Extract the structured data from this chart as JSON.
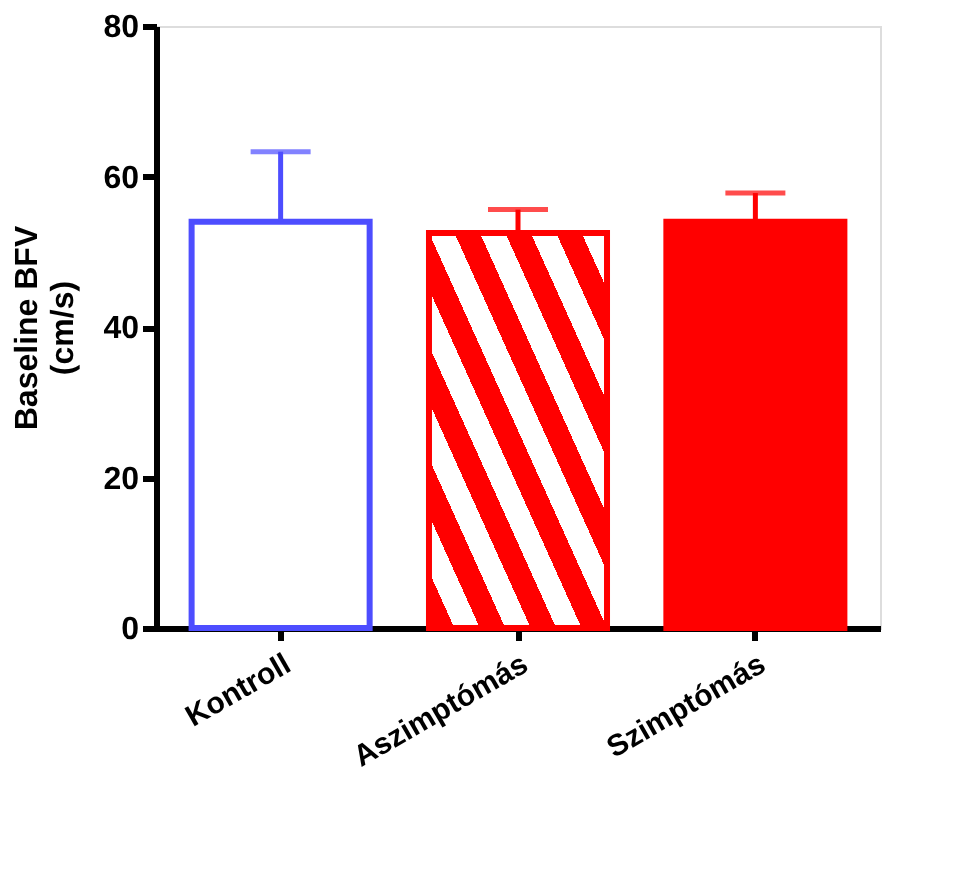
{
  "chart_data": {
    "type": "bar",
    "ylabel": "Baseline BFV\n(cm/s)",
    "categories": [
      "Kontroll",
      "Aszimptómás",
      "Szimptómás"
    ],
    "values": [
      54,
      52.5,
      54
    ],
    "colors": [
      "#4d4dff",
      "#ff0000",
      "#ff0000"
    ],
    "errors": [
      [
        54,
        63.3
      ],
      [
        52.5,
        55.6
      ],
      [
        54,
        57.8
      ]
    ],
    "ylim": [
      0,
      80
    ],
    "yticks": [
      0,
      20,
      40,
      60,
      80
    ],
    "grid": false
  }
}
